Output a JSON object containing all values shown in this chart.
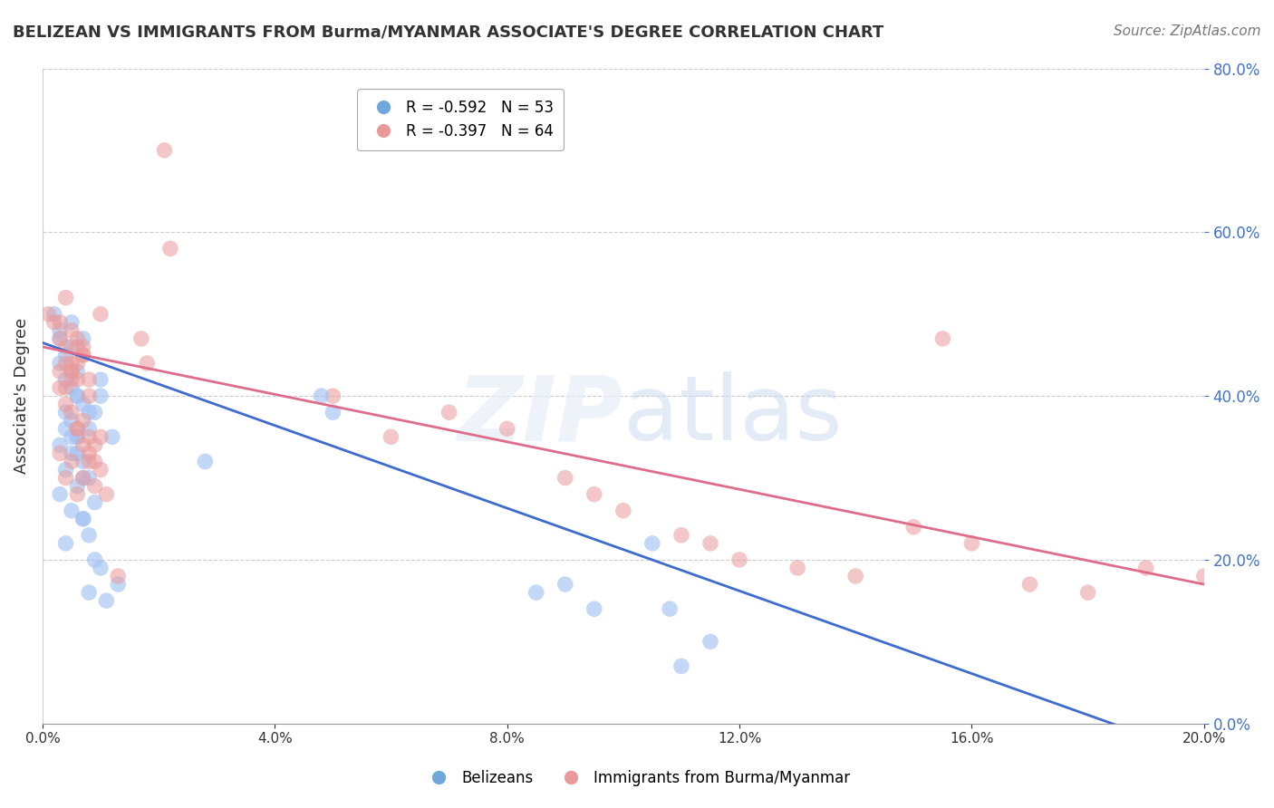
{
  "title": "BELIZEAN VS IMMIGRANTS FROM Burma/MYANMAR ASSOCIATE'S DEGREE CORRELATION CHART",
  "source": "Source: ZipAtlas.com",
  "xlabel_bottom": "",
  "ylabel_left": "Associate's Degree",
  "ylabel_right_ticks": [
    0.0,
    0.2,
    0.4,
    0.6,
    0.8
  ],
  "ylabel_right_labels": [
    "0.0%",
    "20.0%",
    "40.0%",
    "60.0%",
    "80.0%"
  ],
  "xmin": 0.0,
  "xmax": 0.2,
  "ymin": 0.0,
  "ymax": 0.8,
  "legend_label1": "R = -0.592   N = 53",
  "legend_label2": "R = -0.397   N = 64",
  "legend_color1": "#6fa8dc",
  "legend_color2": "#ea9999",
  "scatter_color1": "#a4c2f4",
  "scatter_color2": "#ea9999",
  "line_color1": "#3d6bce",
  "line_color2": "#e06c8b",
  "watermark": "ZIPatlas",
  "blue_x": [
    0.005,
    0.002,
    0.003,
    0.007,
    0.004,
    0.006,
    0.004,
    0.003,
    0.005,
    0.006,
    0.007,
    0.004,
    0.005,
    0.008,
    0.006,
    0.003,
    0.009,
    0.005,
    0.004,
    0.007,
    0.005,
    0.003,
    0.01,
    0.006,
    0.008,
    0.004,
    0.005,
    0.006,
    0.007,
    0.008,
    0.003,
    0.009,
    0.005,
    0.006,
    0.01,
    0.004,
    0.007,
    0.008,
    0.012,
    0.006,
    0.01,
    0.007,
    0.008,
    0.009,
    0.011,
    0.013,
    0.108,
    0.11,
    0.115,
    0.09,
    0.105,
    0.085,
    0.095
  ],
  "blue_y": [
    0.46,
    0.5,
    0.48,
    0.47,
    0.45,
    0.43,
    0.42,
    0.44,
    0.41,
    0.4,
    0.39,
    0.38,
    0.37,
    0.36,
    0.35,
    0.34,
    0.38,
    0.33,
    0.31,
    0.3,
    0.49,
    0.47,
    0.42,
    0.4,
    0.38,
    0.36,
    0.35,
    0.33,
    0.32,
    0.3,
    0.28,
    0.27,
    0.26,
    0.35,
    0.4,
    0.22,
    0.25,
    0.23,
    0.35,
    0.29,
    0.19,
    0.25,
    0.16,
    0.2,
    0.15,
    0.17,
    0.14,
    0.07,
    0.1,
    0.17,
    0.22,
    0.16,
    0.14
  ],
  "pink_x": [
    0.001,
    0.002,
    0.004,
    0.003,
    0.005,
    0.006,
    0.004,
    0.003,
    0.005,
    0.006,
    0.007,
    0.004,
    0.005,
    0.008,
    0.006,
    0.003,
    0.007,
    0.005,
    0.004,
    0.007,
    0.005,
    0.003,
    0.01,
    0.006,
    0.008,
    0.004,
    0.005,
    0.006,
    0.007,
    0.008,
    0.003,
    0.009,
    0.005,
    0.006,
    0.01,
    0.004,
    0.007,
    0.008,
    0.009,
    0.006,
    0.01,
    0.007,
    0.008,
    0.009,
    0.011,
    0.013,
    0.05,
    0.07,
    0.08,
    0.06,
    0.09,
    0.095,
    0.1,
    0.11,
    0.115,
    0.12,
    0.13,
    0.14,
    0.15,
    0.17,
    0.18,
    0.19,
    0.2,
    0.16
  ],
  "pink_y": [
    0.5,
    0.49,
    0.52,
    0.47,
    0.48,
    0.44,
    0.46,
    0.43,
    0.42,
    0.46,
    0.45,
    0.44,
    0.43,
    0.42,
    0.47,
    0.49,
    0.46,
    0.44,
    0.41,
    0.45,
    0.43,
    0.41,
    0.5,
    0.42,
    0.4,
    0.39,
    0.38,
    0.36,
    0.37,
    0.35,
    0.33,
    0.34,
    0.32,
    0.36,
    0.31,
    0.3,
    0.34,
    0.33,
    0.32,
    0.28,
    0.35,
    0.3,
    0.32,
    0.29,
    0.28,
    0.18,
    0.4,
    0.38,
    0.36,
    0.35,
    0.3,
    0.28,
    0.26,
    0.23,
    0.22,
    0.2,
    0.19,
    0.18,
    0.24,
    0.17,
    0.16,
    0.19,
    0.18,
    0.22
  ],
  "blue_line_x": [
    0.0,
    0.2
  ],
  "blue_line_y": [
    0.465,
    -0.04
  ],
  "pink_line_x": [
    0.0,
    0.2
  ],
  "pink_line_y": [
    0.46,
    0.17
  ],
  "extra_pink_points": [
    [
      0.021,
      0.7
    ],
    [
      0.022,
      0.58
    ],
    [
      0.017,
      0.47
    ],
    [
      0.018,
      0.44
    ],
    [
      0.155,
      0.47
    ]
  ],
  "extra_blue_points": [
    [
      0.048,
      0.4
    ],
    [
      0.05,
      0.38
    ],
    [
      0.028,
      0.32
    ]
  ]
}
